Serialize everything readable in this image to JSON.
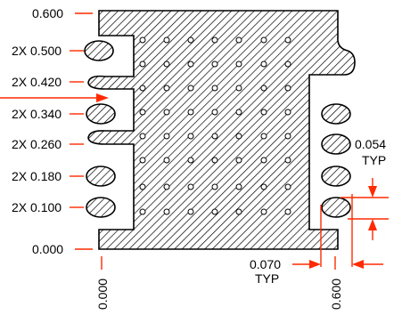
{
  "drawing": {
    "left_labels": [
      "0.600",
      "2X 0.500",
      "2X 0.420",
      "2X 0.340",
      "2X 0.260",
      "2X 0.180",
      "2X 0.100",
      "0.000"
    ],
    "bottom_labels": [
      "0.000",
      "0.600"
    ],
    "pitch_dim": {
      "value": "0.070",
      "note": "TYP"
    },
    "pad_dim": {
      "value": "0.054",
      "note": "TYP"
    },
    "colors": {
      "outline": "#000000",
      "dimension_line": "#ff2a00",
      "hatch": "#000000"
    }
  }
}
